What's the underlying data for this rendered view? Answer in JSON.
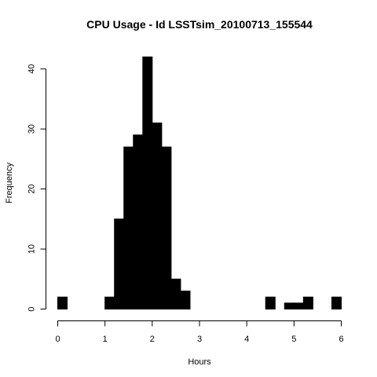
{
  "chart_data": {
    "type": "bar",
    "subtype": "histogram",
    "title": "CPU Usage - Id  LSSTsim_20100713_155544",
    "xlabel": "Hours",
    "ylabel": "Frequency",
    "xlim": [
      0,
      6
    ],
    "ylim": [
      0,
      42
    ],
    "x_ticks": [
      0,
      1,
      2,
      3,
      4,
      5,
      6
    ],
    "y_ticks": [
      0,
      10,
      20,
      30,
      40
    ],
    "bin_width": 0.2,
    "bin_edges": [
      0.0,
      0.2,
      0.4,
      0.6,
      0.8,
      1.0,
      1.2,
      1.4,
      1.6,
      1.8,
      2.0,
      2.2,
      2.4,
      2.6,
      2.8,
      3.0,
      3.2,
      3.4,
      3.6,
      3.8,
      4.0,
      4.2,
      4.4,
      4.6,
      4.8,
      5.0,
      5.2,
      5.4,
      5.6,
      5.8,
      6.0
    ],
    "values": [
      2,
      0,
      0,
      0,
      0,
      2,
      15,
      27,
      29,
      42,
      31,
      27,
      5,
      3,
      0,
      0,
      0,
      0,
      0,
      0,
      0,
      0,
      2,
      0,
      1,
      1,
      2,
      0,
      0,
      2
    ],
    "grid": false,
    "legend": "none",
    "bar_color": "#000000"
  }
}
